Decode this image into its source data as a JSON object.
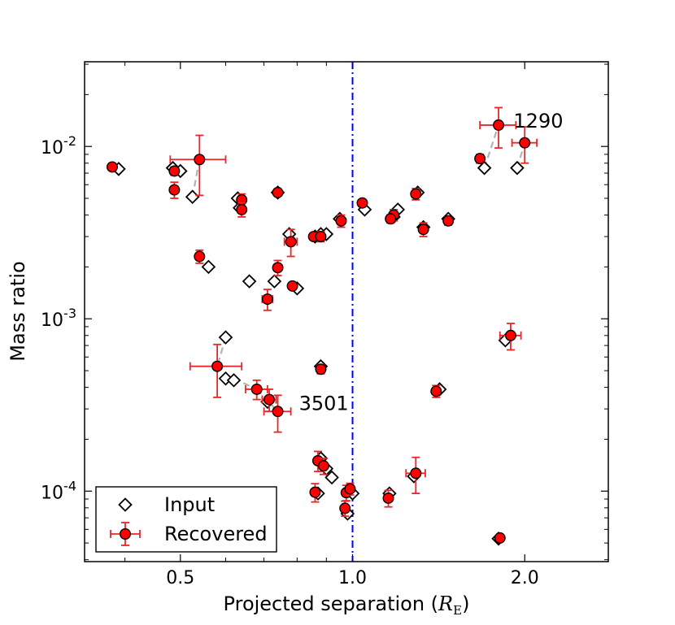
{
  "chart_data": {
    "type": "scatter",
    "xlabel": "Projected separation (",
    "xlabel_symbol": "R",
    "xlabel_subscript": "E",
    "xlabel_close": ")",
    "ylabel": "Mass ratio",
    "xscale": "log",
    "yscale": "log",
    "xlim": [
      0.34,
      2.8
    ],
    "ylim": [
      3.9e-05,
      0.031
    ],
    "xticks": [
      {
        "value": 0.5,
        "label": "0.5"
      },
      {
        "value": 1.0,
        "label": "1.0"
      },
      {
        "value": 2.0,
        "label": "2.0"
      }
    ],
    "yticks": [
      {
        "value": 0.0001,
        "base": "10",
        "exp": "-4"
      },
      {
        "value": 0.001,
        "base": "10",
        "exp": "-3"
      },
      {
        "value": 0.01,
        "base": "10",
        "exp": "-2"
      }
    ],
    "vline": {
      "x": 1.0,
      "color": "#0000ff",
      "style": "dashdot"
    },
    "colors": {
      "recovered": "#ff0000",
      "errorbar": "#e8262a",
      "link": "#b3b3b3",
      "vline": "#0000ff"
    },
    "legend": {
      "position": "lower-left",
      "entries": [
        "Input",
        "Recovered"
      ]
    },
    "annotations": [
      {
        "text": "1290",
        "x": 1.85,
        "y": 0.0133
      },
      {
        "text": "3501",
        "x": 0.78,
        "y": 0.000305
      }
    ],
    "links": [
      {
        "x1": 1.7,
        "y1": 0.0075,
        "x2": 1.8,
        "y2": 0.0133
      },
      {
        "x1": 1.94,
        "y1": 0.0075,
        "x2": 2.0,
        "y2": 0.0105
      },
      {
        "x1": 0.525,
        "y1": 0.0051,
        "x2": 0.54,
        "y2": 0.0084
      },
      {
        "x1": 0.6,
        "y1": 0.00078,
        "x2": 0.58,
        "y2": 0.00053
      },
      {
        "x1": 0.62,
        "y1": 0.00045,
        "x2": 0.68,
        "y2": 0.00039
      },
      {
        "x1": 0.68,
        "y1": 0.00039,
        "x2": 0.74,
        "y2": 0.00029
      }
    ],
    "series": [
      {
        "name": "Input",
        "marker": "diamond",
        "points": [
          {
            "x": 0.39,
            "y": 0.0074
          },
          {
            "x": 0.485,
            "y": 0.0075
          },
          {
            "x": 0.5,
            "y": 0.0072
          },
          {
            "x": 0.525,
            "y": 0.0051
          },
          {
            "x": 0.63,
            "y": 0.005
          },
          {
            "x": 0.635,
            "y": 0.0044
          },
          {
            "x": 0.74,
            "y": 0.0054
          },
          {
            "x": 0.775,
            "y": 0.0031
          },
          {
            "x": 0.86,
            "y": 0.003
          },
          {
            "x": 0.88,
            "y": 0.0031
          },
          {
            "x": 0.9,
            "y": 0.0031
          },
          {
            "x": 0.95,
            "y": 0.0038
          },
          {
            "x": 1.05,
            "y": 0.0043
          },
          {
            "x": 1.2,
            "y": 0.0043
          },
          {
            "x": 1.18,
            "y": 0.0039
          },
          {
            "x": 1.3,
            "y": 0.0054
          },
          {
            "x": 1.33,
            "y": 0.0034
          },
          {
            "x": 1.47,
            "y": 0.0038
          },
          {
            "x": 1.7,
            "y": 0.0075
          },
          {
            "x": 1.94,
            "y": 0.0075
          },
          {
            "x": 0.56,
            "y": 0.002
          },
          {
            "x": 0.66,
            "y": 0.00165
          },
          {
            "x": 0.73,
            "y": 0.00165
          },
          {
            "x": 0.8,
            "y": 0.0015
          },
          {
            "x": 0.6,
            "y": 0.00078
          },
          {
            "x": 0.6,
            "y": 0.00045
          },
          {
            "x": 0.62,
            "y": 0.00044
          },
          {
            "x": 0.71,
            "y": 0.00033
          },
          {
            "x": 0.88,
            "y": 0.00053
          },
          {
            "x": 1.42,
            "y": 0.00039
          },
          {
            "x": 1.85,
            "y": 0.00075
          },
          {
            "x": 0.88,
            "y": 0.000155
          },
          {
            "x": 0.9,
            "y": 0.000135
          },
          {
            "x": 0.92,
            "y": 0.00012
          },
          {
            "x": 0.87,
            "y": 9.7e-05
          },
          {
            "x": 0.98,
            "y": 7.4e-05
          },
          {
            "x": 1.0,
            "y": 9.7e-05
          },
          {
            "x": 1.16,
            "y": 9.7e-05
          },
          {
            "x": 1.28,
            "y": 0.000122
          },
          {
            "x": 1.8,
            "y": 5.3e-05
          }
        ]
      },
      {
        "name": "Recovered",
        "marker": "circle",
        "points": [
          {
            "x": 0.38,
            "y": 0.0076,
            "xerr": 0,
            "yerr": 0
          },
          {
            "x": 0.488,
            "y": 0.0072,
            "xerr": 0,
            "yerr": 0.0004
          },
          {
            "x": 0.488,
            "y": 0.0056,
            "xerr": 0,
            "yerr": 0.0006
          },
          {
            "x": 0.54,
            "y": 0.0084,
            "xerr": 0.06,
            "yerr": 0.0032
          },
          {
            "x": 0.64,
            "y": 0.0049,
            "xerr": 0,
            "yerr": 0.0004
          },
          {
            "x": 0.64,
            "y": 0.0043,
            "xerr": 0,
            "yerr": 0.0004
          },
          {
            "x": 0.74,
            "y": 0.0054,
            "xerr": 0,
            "yerr": 0
          },
          {
            "x": 0.78,
            "y": 0.0028,
            "xerr": 0.02,
            "yerr": 0.0005
          },
          {
            "x": 0.855,
            "y": 0.003,
            "xerr": 0,
            "yerr": 0
          },
          {
            "x": 0.88,
            "y": 0.003,
            "xerr": 0,
            "yerr": 0.0002
          },
          {
            "x": 0.955,
            "y": 0.0037,
            "xerr": 0,
            "yerr": 0.0003
          },
          {
            "x": 1.04,
            "y": 0.0047,
            "xerr": 0,
            "yerr": 0
          },
          {
            "x": 1.18,
            "y": 0.004,
            "xerr": 0,
            "yerr": 0.0003
          },
          {
            "x": 1.165,
            "y": 0.0038,
            "xerr": 0,
            "yerr": 0.0002
          },
          {
            "x": 1.29,
            "y": 0.0053,
            "xerr": 0,
            "yerr": 0.0004
          },
          {
            "x": 1.33,
            "y": 0.0033,
            "xerr": 0,
            "yerr": 0.0003
          },
          {
            "x": 1.47,
            "y": 0.0037,
            "xerr": 0,
            "yerr": 0.0002
          },
          {
            "x": 1.67,
            "y": 0.0085,
            "xerr": 0,
            "yerr": 0.0005
          },
          {
            "x": 1.8,
            "y": 0.0133,
            "xerr": 0.13,
            "yerr": 0.0035
          },
          {
            "x": 2.0,
            "y": 0.0105,
            "xerr": 0.1,
            "yerr": 0.0025
          },
          {
            "x": 0.54,
            "y": 0.0023,
            "xerr": 0,
            "yerr": 0.0002
          },
          {
            "x": 0.71,
            "y": 0.0013,
            "xerr": 0.015,
            "yerr": 0.00018
          },
          {
            "x": 0.74,
            "y": 0.00198,
            "xerr": 0,
            "yerr": 0.0002
          },
          {
            "x": 0.785,
            "y": 0.00155,
            "xerr": 0,
            "yerr": 0
          },
          {
            "x": 0.58,
            "y": 0.00053,
            "xerr": 0.06,
            "yerr": 0.00018
          },
          {
            "x": 0.68,
            "y": 0.00039,
            "xerr": 0.03,
            "yerr": 5e-05
          },
          {
            "x": 0.715,
            "y": 0.00034,
            "xerr": 0.02,
            "yerr": 5e-05
          },
          {
            "x": 0.74,
            "y": 0.00029,
            "xerr": 0.04,
            "yerr": 7e-05
          },
          {
            "x": 0.88,
            "y": 0.00051,
            "xerr": 0,
            "yerr": 3e-05
          },
          {
            "x": 1.4,
            "y": 0.00038,
            "xerr": 0,
            "yerr": 3e-05
          },
          {
            "x": 1.89,
            "y": 0.0008,
            "xerr": 0.08,
            "yerr": 0.00014
          },
          {
            "x": 0.87,
            "y": 0.00015,
            "xerr": 0,
            "yerr": 2e-05
          },
          {
            "x": 0.89,
            "y": 0.00014,
            "xerr": 0,
            "yerr": 1.5e-05
          },
          {
            "x": 0.86,
            "y": 9.85e-05,
            "xerr": 0,
            "yerr": 1.2e-05
          },
          {
            "x": 0.975,
            "y": 9.8e-05,
            "xerr": 0,
            "yerr": 1e-05
          },
          {
            "x": 0.99,
            "y": 0.000103,
            "xerr": 0,
            "yerr": 8e-06
          },
          {
            "x": 0.97,
            "y": 7.95e-05,
            "xerr": 0,
            "yerr": 8e-06
          },
          {
            "x": 1.155,
            "y": 9.1e-05,
            "xerr": 0,
            "yerr": 1e-05
          },
          {
            "x": 1.29,
            "y": 0.000127,
            "xerr": 0.05,
            "yerr": 3e-05
          },
          {
            "x": 1.81,
            "y": 5.35e-05,
            "xerr": 0,
            "yerr": 0
          }
        ]
      }
    ]
  }
}
